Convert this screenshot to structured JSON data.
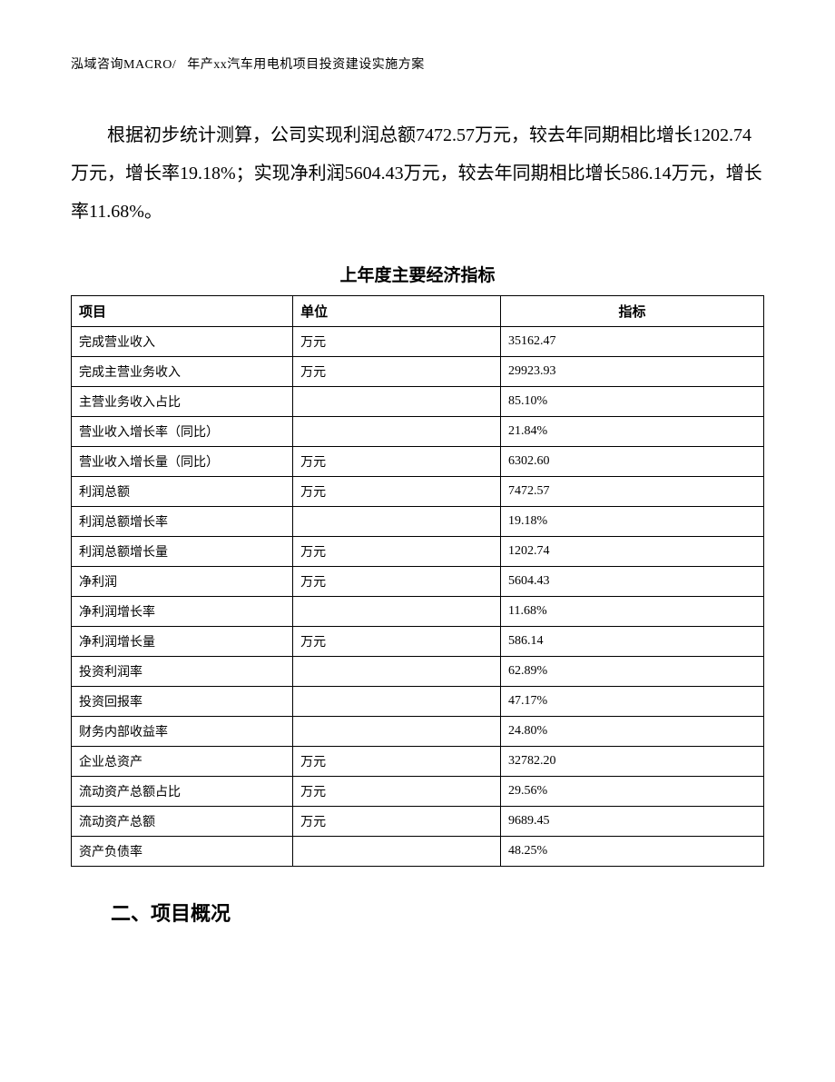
{
  "header": {
    "left": "泓域咨询MACRO/",
    "right": "年产xx汽车用电机项目投资建设实施方案"
  },
  "paragraph": "根据初步统计测算，公司实现利润总额7472.57万元，较去年同期相比增长1202.74万元，增长率19.18%；实现净利润5604.43万元，较去年同期相比增长586.14万元，增长率11.68%。",
  "table": {
    "title": "上年度主要经济指标",
    "columns": [
      "项目",
      "单位",
      "指标"
    ],
    "rows": [
      [
        "完成营业收入",
        "万元",
        "35162.47"
      ],
      [
        "完成主营业务收入",
        "万元",
        "29923.93"
      ],
      [
        "主营业务收入占比",
        "",
        "85.10%"
      ],
      [
        "营业收入增长率（同比）",
        "",
        "21.84%"
      ],
      [
        "营业收入增长量（同比）",
        "万元",
        "6302.60"
      ],
      [
        "利润总额",
        "万元",
        "7472.57"
      ],
      [
        "利润总额增长率",
        "",
        "19.18%"
      ],
      [
        "利润总额增长量",
        "万元",
        "1202.74"
      ],
      [
        "净利润",
        "万元",
        "5604.43"
      ],
      [
        "净利润增长率",
        "",
        "11.68%"
      ],
      [
        "净利润增长量",
        "万元",
        "586.14"
      ],
      [
        "投资利润率",
        "",
        "62.89%"
      ],
      [
        "投资回报率",
        "",
        "47.17%"
      ],
      [
        "财务内部收益率",
        "",
        "24.80%"
      ],
      [
        "企业总资产",
        "万元",
        "32782.20"
      ],
      [
        "流动资产总额占比",
        "万元",
        "29.56%"
      ],
      [
        "流动资产总额",
        "万元",
        "9689.45"
      ],
      [
        "资产负债率",
        "",
        "48.25%"
      ]
    ]
  },
  "section_heading": "二、项目概况"
}
